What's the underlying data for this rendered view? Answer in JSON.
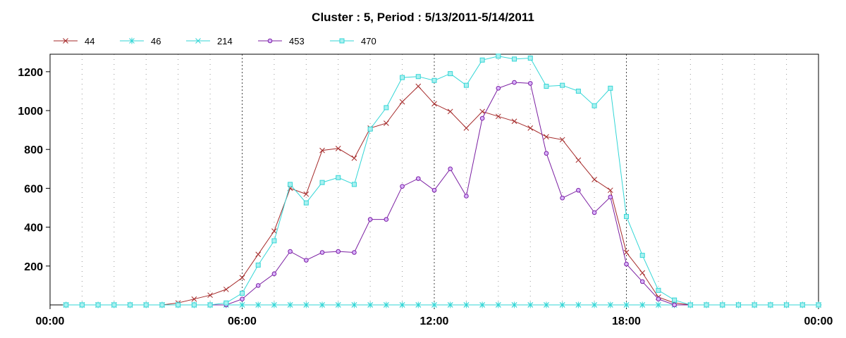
{
  "chart_data": {
    "type": "line",
    "title": "Cluster : 5, Period : 5/13/2011-5/14/2011",
    "xlabel": "",
    "ylabel": "",
    "x_range_hours": [
      0,
      24
    ],
    "x_tick_labels": [
      "00:00",
      "06:00",
      "12:00",
      "18:00",
      "00:00"
    ],
    "y_ticks": [
      200,
      400,
      600,
      800,
      1000,
      1200
    ],
    "ylim": [
      0,
      1290
    ],
    "grid": true,
    "legend_position": "top-left",
    "x": [
      0.5,
      1,
      1.5,
      2,
      2.5,
      3,
      3.5,
      4,
      4.5,
      5,
      5.5,
      6,
      6.5,
      7,
      7.5,
      8,
      8.5,
      9,
      9.5,
      10,
      10.5,
      11,
      11.5,
      12,
      12.5,
      13,
      13.5,
      14,
      14.5,
      15,
      15.5,
      16,
      16.5,
      17,
      17.5,
      18,
      18.5,
      19,
      19.5,
      20,
      20.5,
      21,
      21.5,
      22,
      22.5,
      23,
      23.5,
      24
    ],
    "series": [
      {
        "name": "44",
        "color": "#a52a2a",
        "marker": "x",
        "values": [
          0,
          0,
          0,
          0,
          0,
          0,
          0,
          10,
          30,
          50,
          80,
          140,
          260,
          380,
          600,
          570,
          795,
          805,
          755,
          910,
          935,
          1045,
          1125,
          1035,
          995,
          910,
          995,
          970,
          945,
          910,
          865,
          850,
          745,
          645,
          590,
          270,
          165,
          40,
          10,
          0,
          0,
          0,
          0,
          0,
          0,
          0,
          0,
          0
        ]
      },
      {
        "name": "46",
        "color": "#33d6d6",
        "marker": "asterisk",
        "values": [
          0,
          0,
          0,
          0,
          0,
          0,
          0,
          0,
          0,
          0,
          0,
          0,
          0,
          0,
          0,
          0,
          0,
          0,
          0,
          0,
          0,
          0,
          0,
          0,
          0,
          0,
          0,
          0,
          0,
          0,
          0,
          0,
          0,
          0,
          0,
          0,
          0,
          0,
          0,
          0,
          0,
          0,
          0,
          0,
          0,
          0,
          0,
          0
        ]
      },
      {
        "name": "214",
        "color": "#33d6d6",
        "marker": "x",
        "values": [
          0,
          0,
          0,
          0,
          0,
          0,
          0,
          0,
          0,
          0,
          0,
          0,
          0,
          0,
          0,
          0,
          0,
          0,
          0,
          0,
          0,
          0,
          0,
          0,
          0,
          0,
          0,
          0,
          0,
          0,
          0,
          0,
          0,
          0,
          0,
          0,
          0,
          0,
          0,
          0,
          0,
          0,
          0,
          0,
          0,
          0,
          0,
          0
        ]
      },
      {
        "name": "453",
        "color": "#7b1fa2",
        "marker": "circle",
        "values": [
          0,
          0,
          0,
          0,
          0,
          0,
          0,
          0,
          0,
          0,
          0,
          30,
          100,
          160,
          275,
          230,
          270,
          275,
          270,
          440,
          440,
          610,
          650,
          590,
          700,
          560,
          960,
          1115,
          1145,
          1140,
          780,
          550,
          590,
          475,
          555,
          210,
          120,
          30,
          0,
          0,
          0,
          0,
          0,
          0,
          0,
          0,
          0,
          0
        ]
      },
      {
        "name": "470",
        "color": "#33d6d6",
        "marker": "square",
        "values": [
          0,
          0,
          0,
          0,
          0,
          0,
          0,
          0,
          0,
          0,
          10,
          60,
          205,
          330,
          620,
          525,
          630,
          655,
          620,
          905,
          1015,
          1170,
          1175,
          1155,
          1190,
          1130,
          1260,
          1280,
          1265,
          1270,
          1125,
          1130,
          1100,
          1025,
          1115,
          455,
          255,
          75,
          25,
          0,
          0,
          0,
          0,
          0,
          0,
          0,
          0,
          0
        ]
      }
    ]
  }
}
